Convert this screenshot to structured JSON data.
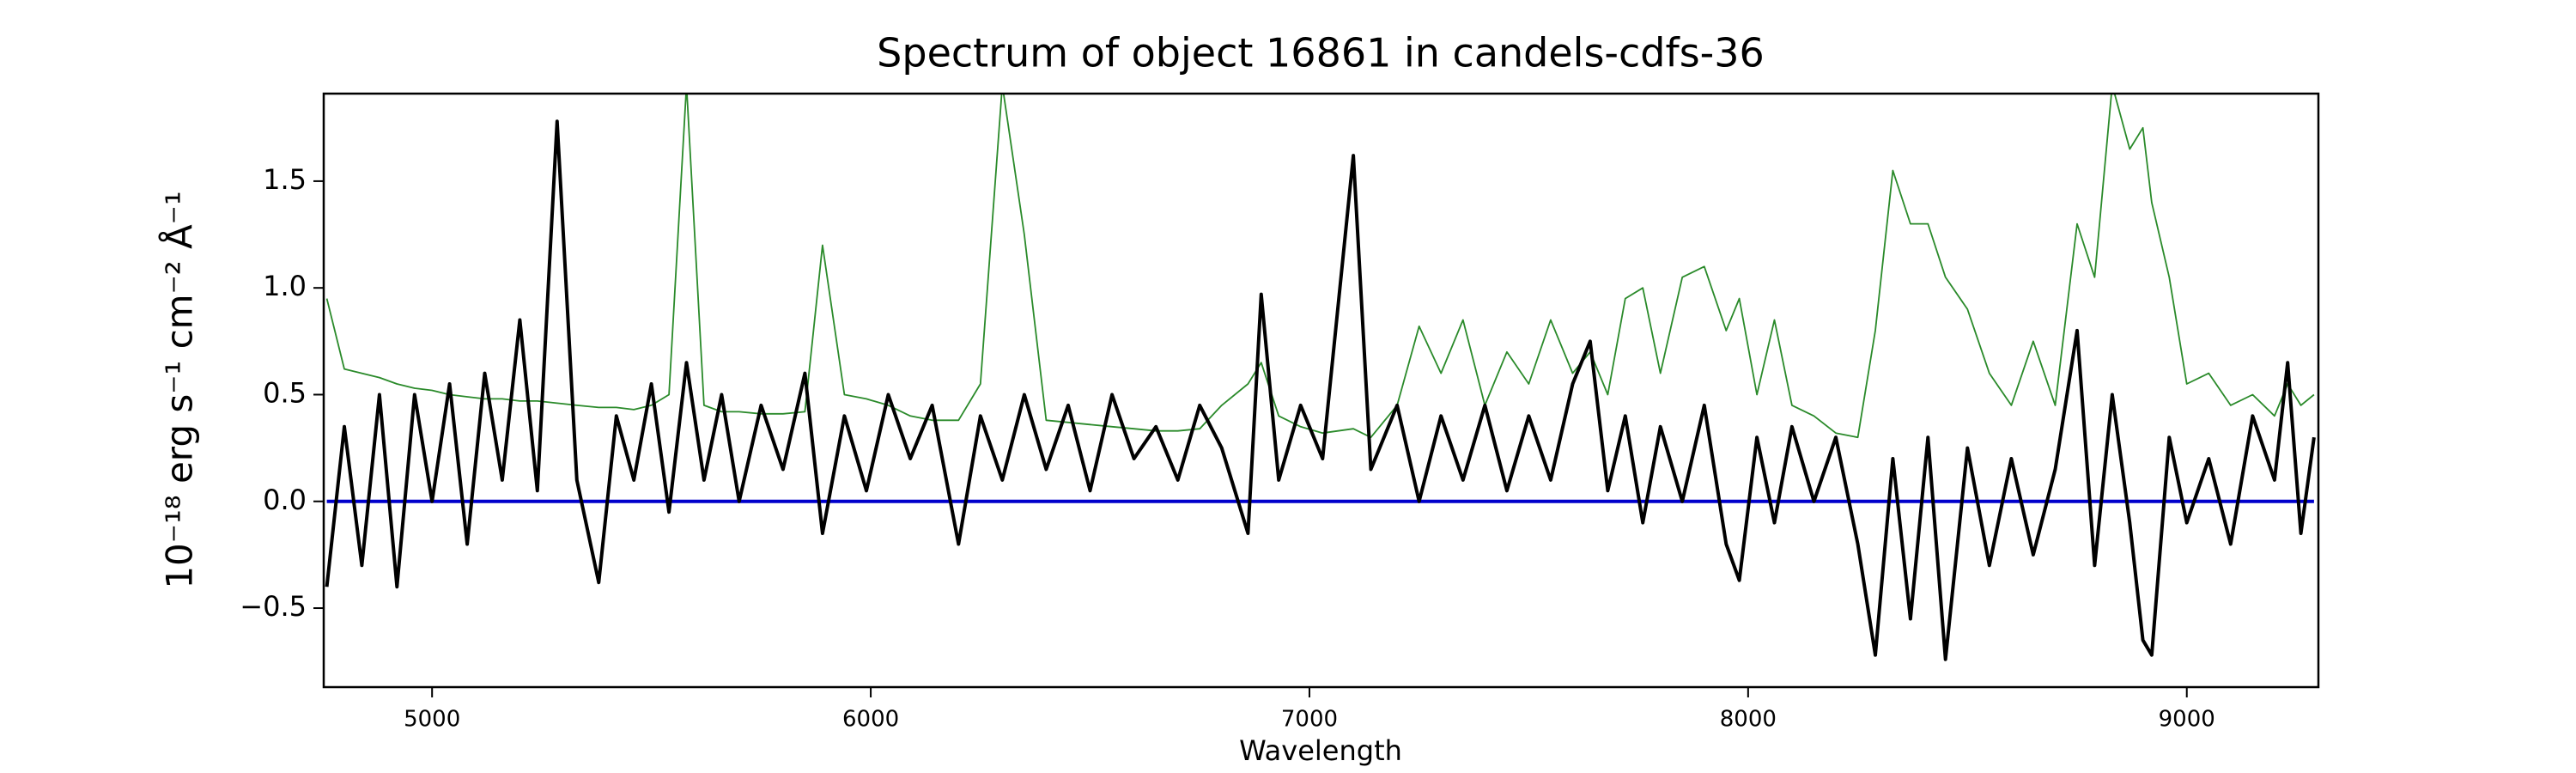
{
  "chart_data": {
    "type": "line",
    "title": "Spectrum of object 16861 in candels-cdfs-36",
    "x_label": "Wavelength",
    "y_label": "10⁻¹⁸ erg s⁻¹ cm⁻² Å⁻¹",
    "xlim": [
      4753,
      9300
    ],
    "ylim": [
      -0.87,
      1.91
    ],
    "xticks": [
      5000,
      6000,
      7000,
      8000,
      9000
    ],
    "yticks": [
      {
        "value": -0.5,
        "label": "−0.5"
      },
      {
        "value": 0,
        "label": "0.0"
      },
      {
        "value": 0.5,
        "label": "0.5"
      },
      {
        "value": 1,
        "label": "1.0"
      },
      {
        "value": 1.5,
        "label": "1.5"
      }
    ],
    "x": [
      4760,
      4800,
      4840,
      4880,
      4920,
      4960,
      5000,
      5040,
      5080,
      5120,
      5160,
      5200,
      5240,
      5285,
      5330,
      5380,
      5420,
      5460,
      5500,
      5540,
      5580,
      5620,
      5660,
      5700,
      5750,
      5800,
      5850,
      5890,
      5940,
      5990,
      6040,
      6090,
      6140,
      6200,
      6250,
      6300,
      6350,
      6400,
      6450,
      6500,
      6550,
      6600,
      6650,
      6700,
      6750,
      6800,
      6860,
      6890,
      6930,
      6980,
      7030,
      7100,
      7140,
      7200,
      7250,
      7300,
      7350,
      7400,
      7450,
      7500,
      7550,
      7600,
      7640,
      7680,
      7720,
      7760,
      7800,
      7850,
      7900,
      7950,
      7980,
      8020,
      8060,
      8100,
      8150,
      8200,
      8250,
      8290,
      8330,
      8370,
      8410,
      8450,
      8500,
      8550,
      8600,
      8650,
      8700,
      8750,
      8790,
      8830,
      8870,
      8900,
      8920,
      8960,
      9000,
      9050,
      9100,
      9150,
      9200,
      9230,
      9260,
      9290
    ],
    "series": [
      {
        "color": "#2a8a2a",
        "width": 1.8,
        "values": [
          0.95,
          0.62,
          0.6,
          0.58,
          0.55,
          0.53,
          0.52,
          0.5,
          0.49,
          0.48,
          0.48,
          0.47,
          0.47,
          0.46,
          0.45,
          0.44,
          0.44,
          0.43,
          0.45,
          0.5,
          1.95,
          0.45,
          0.42,
          0.42,
          0.41,
          0.41,
          0.42,
          1.2,
          0.5,
          0.48,
          0.45,
          0.4,
          0.38,
          0.38,
          0.55,
          1.95,
          1.25,
          0.38,
          0.37,
          0.36,
          0.35,
          0.34,
          0.33,
          0.33,
          0.34,
          0.45,
          0.55,
          0.65,
          0.4,
          0.35,
          0.32,
          0.34,
          0.3,
          0.45,
          0.82,
          0.6,
          0.85,
          0.45,
          0.7,
          0.55,
          0.85,
          0.6,
          0.7,
          0.5,
          0.95,
          1.0,
          0.6,
          1.05,
          1.1,
          0.8,
          0.95,
          0.5,
          0.85,
          0.45,
          0.4,
          0.32,
          0.3,
          0.8,
          1.55,
          1.3,
          1.3,
          1.05,
          0.9,
          0.6,
          0.45,
          0.75,
          0.45,
          1.3,
          1.05,
          1.95,
          1.65,
          1.75,
          1.4,
          1.05,
          0.55,
          0.6,
          0.45,
          0.5,
          0.4,
          0.55,
          0.45,
          0.5
        ]
      },
      {
        "color": "#0000cc",
        "width": 4,
        "x": [
          4760,
          9290
        ],
        "values": [
          0,
          0
        ]
      },
      {
        "color": "#000000",
        "width": 4,
        "values": [
          -0.4,
          0.35,
          -0.3,
          0.5,
          -0.4,
          0.5,
          0.0,
          0.55,
          -0.2,
          0.6,
          0.1,
          0.85,
          0.05,
          1.78,
          0.1,
          -0.38,
          0.4,
          0.1,
          0.55,
          -0.05,
          0.65,
          0.1,
          0.5,
          0.0,
          0.45,
          0.15,
          0.6,
          -0.15,
          0.4,
          0.05,
          0.5,
          0.2,
          0.45,
          -0.2,
          0.4,
          0.1,
          0.5,
          0.15,
          0.45,
          0.05,
          0.5,
          0.2,
          0.35,
          0.1,
          0.45,
          0.25,
          -0.15,
          0.97,
          0.1,
          0.45,
          0.2,
          1.62,
          0.15,
          0.45,
          0.0,
          0.4,
          0.1,
          0.45,
          0.05,
          0.4,
          0.1,
          0.55,
          0.75,
          0.05,
          0.4,
          -0.1,
          0.35,
          0.0,
          0.45,
          -0.2,
          -0.37,
          0.3,
          -0.1,
          0.35,
          0.0,
          0.3,
          -0.2,
          -0.72,
          0.2,
          -0.55,
          0.3,
          -0.74,
          0.25,
          -0.3,
          0.2,
          -0.25,
          0.15,
          0.8,
          -0.3,
          0.5,
          -0.1,
          -0.65,
          -0.72,
          0.3,
          -0.1,
          0.2,
          -0.2,
          0.4,
          0.1,
          0.65,
          -0.15,
          0.3
        ]
      }
    ]
  }
}
